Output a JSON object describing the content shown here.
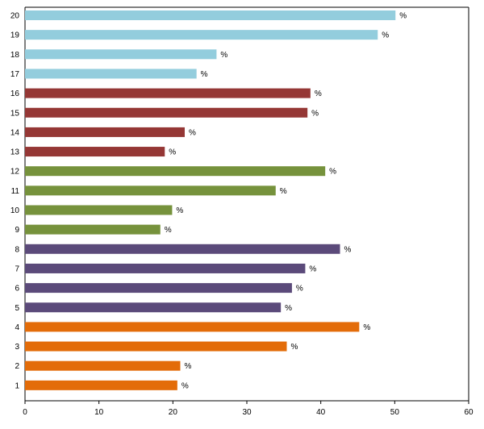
{
  "chart_data": {
    "type": "bar",
    "orientation": "horizontal",
    "categories": [
      "1",
      "2",
      "3",
      "4",
      "5",
      "6",
      "7",
      "8",
      "9",
      "10",
      "11",
      "12",
      "13",
      "14",
      "15",
      "16",
      "17",
      "18",
      "19",
      "20"
    ],
    "values": [
      20.6,
      21.0,
      35.4,
      45.2,
      34.6,
      36.1,
      37.9,
      42.6,
      18.3,
      19.9,
      33.9,
      40.6,
      18.9,
      21.6,
      38.2,
      38.6,
      23.2,
      25.9,
      47.7,
      50.1
    ],
    "value_suffix": "%",
    "bar_colors": [
      "#E36C09",
      "#E36C09",
      "#E36C09",
      "#E36C09",
      "#5B4A7A",
      "#5B4A7A",
      "#5B4A7A",
      "#5B4A7A",
      "#76923C",
      "#76923C",
      "#76923C",
      "#76923C",
      "#953735",
      "#953735",
      "#953735",
      "#953735",
      "#93CDDD",
      "#93CDDD",
      "#93CDDD",
      "#93CDDD"
    ],
    "x_ticks": [
      "0",
      "10",
      "20",
      "30",
      "40",
      "50",
      "60"
    ],
    "xlim": [
      0,
      60
    ],
    "title": "",
    "xlabel": "",
    "ylabel": "",
    "grid": false,
    "legend": "none"
  }
}
